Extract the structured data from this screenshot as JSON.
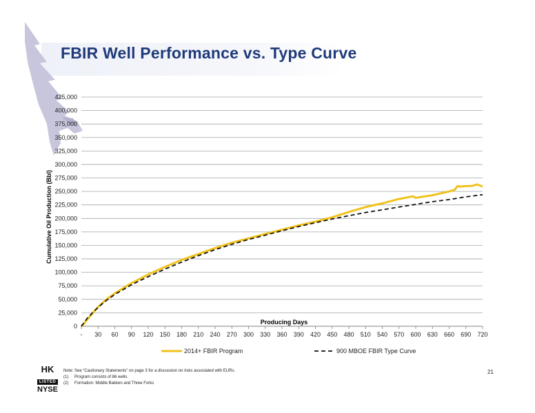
{
  "slide": {
    "title": "FBIR Well Performance vs. Type Curve",
    "page_number": "21"
  },
  "footer": {
    "logo_top": "HK",
    "logo_middle": "LISTED",
    "logo_bottom": "NYSE",
    "note_line": "Note: See “Cautionary Statements” on page 3 for a discussion on risks associated with EURs.",
    "footnotes": [
      {
        "num": "(1)",
        "text": "Program consists of 86 wells."
      },
      {
        "num": "(2)",
        "text": "Formation: Middle Bakken and Three Forks"
      }
    ]
  },
  "colors": {
    "title": "#1f3a7a",
    "program_line": "#f0c21a",
    "type_curve_line": "#111111",
    "gridline": "#a6a6a6",
    "logo": "#c8c6dc"
  },
  "chart_data": {
    "type": "line",
    "xlabel": "Producing Days",
    "ylabel": "Cumulative Oil Production (Bbl)",
    "xlim": [
      0,
      720
    ],
    "ylim": [
      0,
      425000
    ],
    "x_ticks": [
      "-",
      "30",
      "60",
      "90",
      "120",
      "150",
      "180",
      "210",
      "240",
      "270",
      "300",
      "330",
      "360",
      "390",
      "420",
      "450",
      "480",
      "510",
      "540",
      "570",
      "600",
      "630",
      "660",
      "690",
      "720"
    ],
    "y_ticks": [
      "0",
      "25,000",
      "50,000",
      "75,000",
      "100,000",
      "125,000",
      "150,000",
      "175,000",
      "200,000",
      "225,000",
      "250,000",
      "275,000",
      "300,000",
      "325,000",
      "350,000",
      "375,000",
      "400,000",
      "425,000"
    ],
    "grid": true,
    "legend_position": "bottom",
    "series": [
      {
        "name": "2014+ FBIR Program",
        "style": "solid",
        "x": [
          0,
          5,
          10,
          20,
          30,
          45,
          60,
          90,
          120,
          150,
          180,
          210,
          240,
          270,
          300,
          330,
          360,
          390,
          420,
          450,
          480,
          510,
          540,
          570,
          595,
          600,
          605,
          630,
          660,
          670,
          675,
          680,
          690,
          700,
          710,
          715,
          720
        ],
        "y": [
          0,
          5000,
          12000,
          24000,
          36000,
          50000,
          61000,
          80000,
          96000,
          110000,
          123000,
          134000,
          145000,
          155000,
          163000,
          171000,
          179000,
          187000,
          194000,
          202000,
          212000,
          221000,
          228000,
          236000,
          241000,
          238000,
          239000,
          243000,
          250000,
          253000,
          260000,
          259000,
          260000,
          260000,
          263000,
          261000,
          259000
        ]
      },
      {
        "name": "900 MBOE FBIR Type Curve",
        "style": "dashed",
        "x": [
          0,
          5,
          10,
          20,
          30,
          45,
          60,
          90,
          120,
          150,
          180,
          210,
          240,
          270,
          300,
          330,
          360,
          390,
          420,
          450,
          480,
          510,
          540,
          570,
          600,
          630,
          660,
          690,
          720
        ],
        "y": [
          0,
          7000,
          14000,
          25000,
          35000,
          48000,
          59000,
          77000,
          92000,
          106000,
          119000,
          131000,
          142000,
          152000,
          161000,
          169000,
          177000,
          185000,
          192000,
          199000,
          205000,
          211000,
          216000,
          221000,
          226000,
          231000,
          235000,
          240000,
          244000
        ]
      }
    ]
  }
}
